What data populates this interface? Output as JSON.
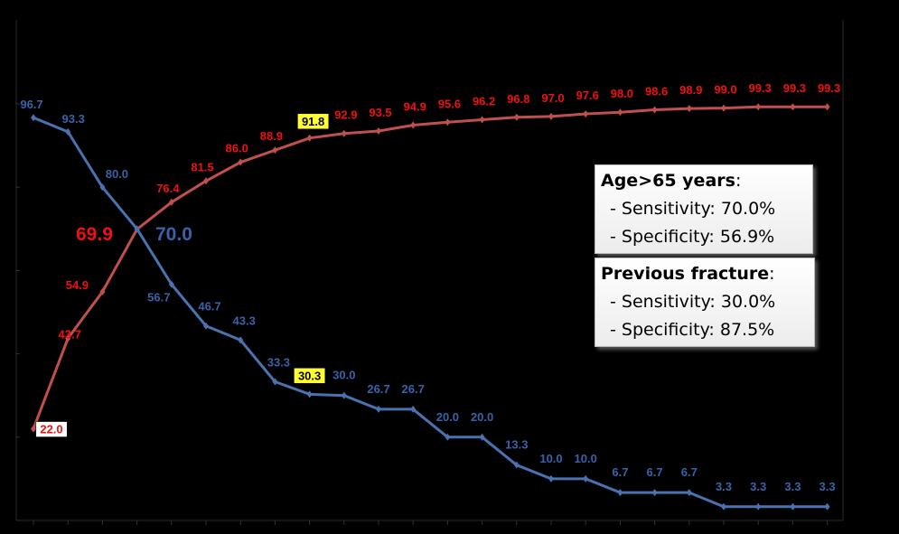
{
  "chart_data": {
    "type": "line",
    "title": "",
    "xlabel": "",
    "ylabel": "",
    "ylim": [
      0,
      100
    ],
    "point_count": 24,
    "series": [
      {
        "name": "Sensitivity",
        "color": "#4a72b0",
        "values": [
          96.7,
          93.3,
          80.0,
          70.0,
          56.7,
          46.7,
          43.3,
          33.3,
          30.3,
          30.0,
          26.7,
          26.7,
          20.0,
          20.0,
          13.3,
          10.0,
          10.0,
          6.7,
          6.7,
          6.7,
          3.3,
          3.3,
          3.3,
          3.3
        ],
        "labels": [
          "96.7",
          "93.3",
          "80.0",
          "",
          "56.7",
          "46.7",
          "43.3",
          "33.3",
          "30.3",
          "30.0",
          "26.7",
          "26.7",
          "20.0",
          "20.0",
          "13.3",
          "10.0",
          "10.0",
          "6.7",
          "6.7",
          "6.7",
          "3.3",
          "3.3",
          "3.3",
          "3.3"
        ],
        "highlight_index": 8
      },
      {
        "name": "Specificity",
        "color": "#c0504d",
        "label_color": "#ee1111",
        "values": [
          22.0,
          43.7,
          54.9,
          69.9,
          76.4,
          81.5,
          86.0,
          88.9,
          91.8,
          92.9,
          93.5,
          94.9,
          95.6,
          96.2,
          96.8,
          97.0,
          97.6,
          98.0,
          98.6,
          98.9,
          99.0,
          99.3,
          99.3,
          99.3
        ],
        "labels": [
          "22.0",
          "43.7",
          "54.9",
          "",
          "76.4",
          "81.5",
          "86.0",
          "88.9",
          "91.8",
          "92.9",
          "93.5",
          "94.9",
          "95.6",
          "96.2",
          "96.8",
          "97.0",
          "97.6",
          "98.0",
          "98.6",
          "98.9",
          "99.0",
          "99.3",
          "99.3",
          "99.3"
        ],
        "highlight_index": 8
      }
    ],
    "crossing_labels": {
      "specificity": "69.9",
      "sensitivity": "70.0"
    }
  },
  "legend_age": {
    "title": "Age>65 years",
    "colon": ":",
    "sensitivity": "- Sensitivity: 70.0%",
    "specificity": "- Specificity: 56.9%"
  },
  "legend_prev": {
    "title": "Previous fracture",
    "colon": ":",
    "sensitivity": "- Sensitivity: 30.0%",
    "specificity": "- Specificity: 87.5%"
  }
}
